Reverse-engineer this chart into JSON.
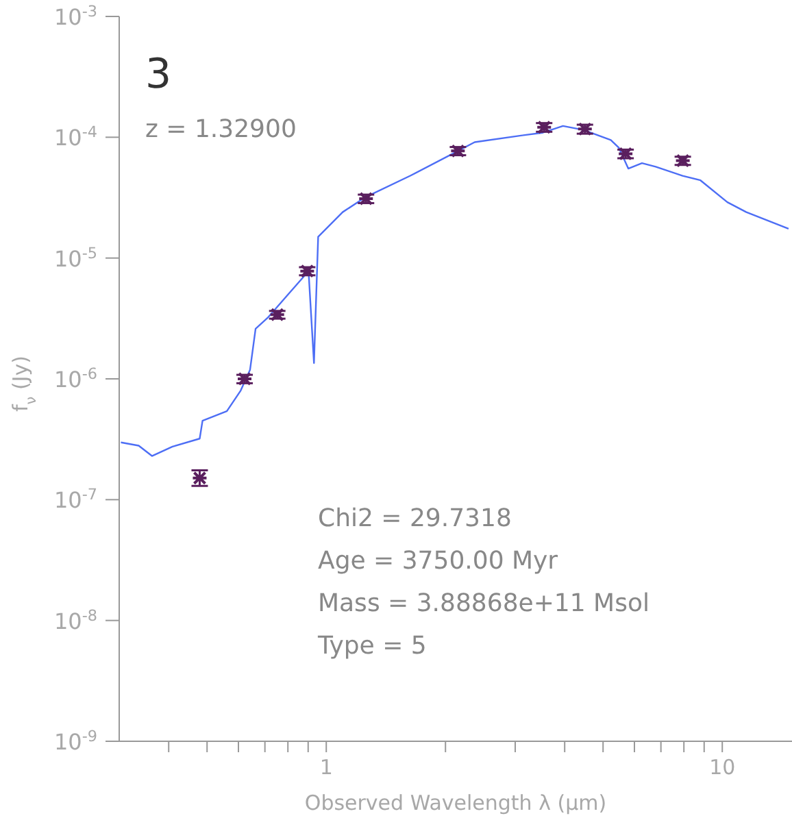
{
  "chart_data": {
    "type": "scatter",
    "xlabel": "Observed Wavelength λ (μm)",
    "ylabel": "f$_{ν}$ (Jy)",
    "log": "xy",
    "xlim": [
      0.3,
      15
    ],
    "ylim": [
      1e-09,
      0.001
    ],
    "xticks": [
      {
        "value": 0.4,
        "label": null
      },
      {
        "value": 0.5,
        "label": null
      },
      {
        "value": 0.6,
        "label": null
      },
      {
        "value": 0.7,
        "label": null
      },
      {
        "value": 0.8,
        "label": null
      },
      {
        "value": 0.9,
        "label": null
      },
      1,
      {
        "value": 2,
        "label": null
      },
      {
        "value": 3,
        "label": null
      },
      {
        "value": 4,
        "label": null
      },
      {
        "value": 5,
        "label": null
      },
      {
        "value": 6,
        "label": null
      },
      {
        "value": 7,
        "label": null
      },
      {
        "value": 8,
        "label": null
      },
      {
        "value": 9,
        "label": null
      },
      10
    ],
    "yticks": [
      {
        "value": 1e-09,
        "label": "10$^{-9}$"
      },
      {
        "value": 1e-08,
        "label": "10$^{-8}$"
      },
      {
        "value": 1e-07,
        "label": "10$^{-7}$"
      },
      {
        "value": 1e-06,
        "label": "10$^{-6}$"
      },
      {
        "value": 1e-05,
        "label": "10$^{-5}$"
      },
      {
        "value": 0.0001,
        "label": "10$^{-4}$"
      },
      {
        "value": 0.001,
        "label": "10$^{-3}$"
      }
    ],
    "series": [
      {
        "type": "line",
        "color": "#4d6ef5",
        "marker": "none",
        "line_style": "solid",
        "x": [
          0.303,
          0.336,
          0.363,
          0.409,
          0.479,
          0.487,
          0.561,
          0.608,
          0.642,
          0.663,
          0.711,
          0.801,
          0.902,
          0.931,
          0.954,
          1.1,
          1.258,
          1.63,
          2.15,
          2.37,
          3.08,
          3.52,
          3.96,
          4.46,
          5.23,
          5.48,
          5.79,
          6.27,
          6.79,
          7.94,
          8.81,
          10.3,
          11.5,
          14.7
        ],
        "values": [
          2.98e-07,
          2.8e-07,
          2.3e-07,
          2.75e-07,
          3.2e-07,
          4.5e-07,
          5.4e-07,
          8e-07,
          1.19e-06,
          2.6e-06,
          3.2e-06,
          5e-06,
          7.8e-06,
          1.35e-06,
          1.5e-05,
          2.4e-05,
          3.2e-05,
          4.8e-05,
          7.7e-05,
          9.1e-05,
          0.000103,
          0.000109,
          0.000124,
          0.000115,
          9.5e-05,
          8.2e-05,
          5.5e-05,
          6.1e-05,
          5.7e-05,
          4.8e-05,
          4.4e-05,
          2.9e-05,
          2.4e-05,
          1.75e-05
        ]
      },
      {
        "color": "#5a1f5e",
        "marker": "cross",
        "x": [
          0.479,
          0.622,
          0.752,
          0.895,
          1.26,
          2.15,
          3.55,
          4.5,
          5.7,
          7.95
        ],
        "values": [
          1.51e-07,
          1e-06,
          3.4e-06,
          7.8e-06,
          3.1e-05,
          7.7e-05,
          0.000121,
          0.000117,
          7.3e-05,
          6.4e-05
        ],
        "errors": [
          [
            1.3e-07,
            1.75e-07
          ],
          [
            9.2e-07,
            1.08e-06
          ],
          [
            3.15e-06,
            3.65e-06
          ],
          [
            7.2e-06,
            8.4e-06
          ],
          [
            2.85e-05,
            3.35e-05
          ],
          [
            7.1e-05,
            8.3e-05
          ],
          [
            0.000111,
            0.000131
          ],
          [
            0.000107,
            0.000127
          ],
          [
            6.7e-05,
            7.9e-05
          ],
          [
            5.9e-05,
            6.9e-05
          ]
        ]
      }
    ],
    "annotations": [
      "3",
      "z = 1.32900",
      "Chi2 = 29.7318",
      "Age = 3750.00 Myr",
      "Mass = 3.88868e+11 Msol",
      "Type = 5"
    ]
  }
}
